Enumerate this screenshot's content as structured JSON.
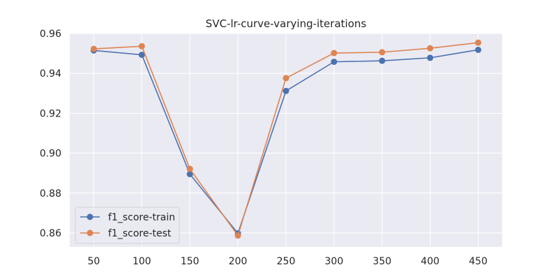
{
  "chart_data": {
    "type": "line",
    "title": "SVC-lr-curve-varying-iterations",
    "xlabel": "",
    "ylabel": "",
    "x": [
      50,
      100,
      150,
      200,
      250,
      300,
      350,
      400,
      450
    ],
    "xlim": [
      25,
      475
    ],
    "ylim": [
      0.853,
      0.96
    ],
    "xticks": [
      "50",
      "100",
      "150",
      "200",
      "250",
      "300",
      "350",
      "400",
      "450"
    ],
    "yticks": [
      "0.86",
      "0.88",
      "0.90",
      "0.92",
      "0.94",
      "0.96"
    ],
    "grid": true,
    "legend_position": "lower-left",
    "series": [
      {
        "name": "f1_score-train",
        "color": "#4c72b0",
        "values": [
          0.9515,
          0.9493,
          0.8895,
          0.8598,
          0.9312,
          0.9458,
          0.9463,
          0.9478,
          0.9518
        ]
      },
      {
        "name": "f1_score-test",
        "color": "#dd8452",
        "values": [
          0.9523,
          0.9536,
          0.8921,
          0.8587,
          0.9376,
          0.9502,
          0.9506,
          0.9526,
          0.9554
        ]
      }
    ]
  }
}
